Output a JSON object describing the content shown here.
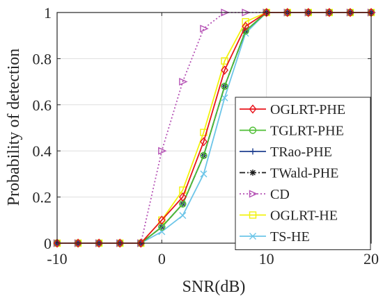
{
  "chart_data": {
    "type": "line",
    "title": "",
    "xlabel": "SNR(dB)",
    "ylabel": "Probability of detection",
    "xlim": [
      -10,
      20
    ],
    "ylim": [
      0,
      1
    ],
    "xticks": [
      -10,
      0,
      10,
      20
    ],
    "yticks": [
      0,
      0.2,
      0.4,
      0.6,
      0.8,
      1
    ],
    "xtick_labels": [
      "-10",
      "0",
      "10",
      "20"
    ],
    "ytick_labels": [
      "0",
      "0.2",
      "0.4",
      "0.6",
      "0.8",
      "1"
    ],
    "grid": true,
    "legend_position": "right",
    "x": [
      -10,
      -8,
      -6,
      -4,
      -2,
      0,
      2,
      4,
      6,
      8,
      10,
      12,
      14,
      16,
      18,
      20
    ],
    "series": [
      {
        "name": "OGLRT-PHE",
        "color": "#e8141c",
        "marker": "diamond",
        "dash": "solid",
        "values": [
          0,
          0,
          0,
          0,
          0,
          0.1,
          0.2,
          0.44,
          0.75,
          0.94,
          1,
          1,
          1,
          1,
          1,
          1
        ]
      },
      {
        "name": "TGLRT-PHE",
        "color": "#4dbd33",
        "marker": "circle",
        "dash": "solid",
        "values": [
          0,
          0,
          0,
          0,
          0,
          0.07,
          0.17,
          0.38,
          0.68,
          0.92,
          1,
          1,
          1,
          1,
          1,
          1
        ]
      },
      {
        "name": "TRao-PHE",
        "color": "#1f3f8f",
        "marker": "plus",
        "dash": "solid",
        "values": [
          0,
          0,
          0,
          0,
          0,
          0.07,
          0.17,
          0.38,
          0.68,
          0.92,
          1,
          1,
          1,
          1,
          1,
          1
        ]
      },
      {
        "name": "TWald-PHE",
        "color": "#1a1a1a",
        "marker": "asterisk",
        "dash": "dashdot",
        "values": [
          0,
          0,
          0,
          0,
          0,
          0.07,
          0.17,
          0.38,
          0.68,
          0.92,
          1,
          1,
          1,
          1,
          1,
          1
        ]
      },
      {
        "name": "CD",
        "color": "#b552b5",
        "marker": "triangle-right",
        "dash": "dotted",
        "values": [
          0,
          0,
          0,
          0,
          0,
          0.4,
          0.7,
          0.93,
          1,
          1,
          1,
          1,
          1,
          1,
          1,
          1
        ]
      },
      {
        "name": "OGLRT-HE",
        "color": "#f2f20d",
        "marker": "square",
        "dash": "solid",
        "values": [
          0,
          0,
          0,
          0,
          0,
          0.1,
          0.23,
          0.48,
          0.79,
          0.96,
          1,
          1,
          1,
          1,
          1,
          1
        ]
      },
      {
        "name": "TS-HE",
        "color": "#6cc5e8",
        "marker": "x",
        "dash": "solid",
        "values": [
          0,
          0,
          0,
          0,
          0,
          0.05,
          0.12,
          0.3,
          0.63,
          0.91,
          1,
          1,
          1,
          1,
          1,
          1
        ]
      }
    ]
  }
}
